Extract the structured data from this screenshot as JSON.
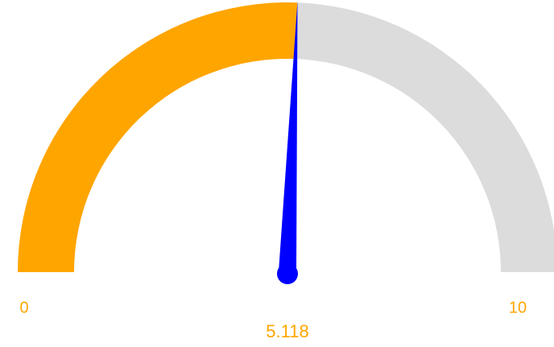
{
  "chart_data": {
    "type": "gauge",
    "value": 5.118,
    "min": 0,
    "max": 10,
    "color": "#ffa500",
    "track_color": "#dcdcdc",
    "needle_color": "#0000ff"
  }
}
